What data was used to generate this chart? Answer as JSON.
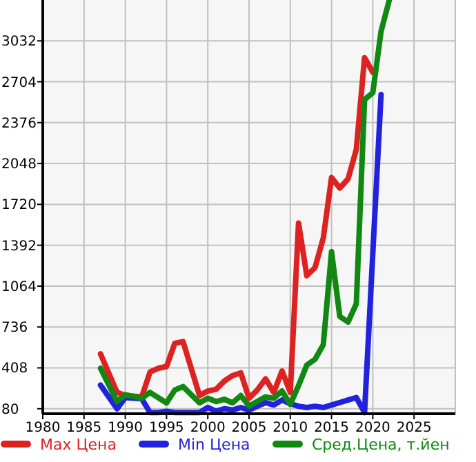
{
  "chart_data": {
    "type": "line",
    "xlim": [
      1980,
      2030
    ],
    "xticks": [
      1980,
      1985,
      1990,
      1995,
      2000,
      2005,
      2010,
      2015,
      2020,
      2025
    ],
    "ylim": [
      40,
      3360
    ],
    "yticks": [
      80,
      408,
      736,
      1064,
      1392,
      1720,
      2048,
      2376,
      2704,
      3032
    ],
    "grid": true,
    "legend": "bottom",
    "marker": "none",
    "line_style": "solid",
    "series": [
      {
        "name": "Max Цена",
        "color": "#dd2222",
        "x": [
          1987,
          1989,
          1990,
          1992,
          1993,
          1994,
          1995,
          1996,
          1997,
          1999,
          2000,
          2001,
          2002,
          2003,
          2004,
          2005,
          2006,
          2007,
          2008,
          2009,
          2010,
          2011,
          2012,
          2013,
          2014,
          2015,
          2016,
          2017,
          2018,
          2019,
          2020
        ],
        "values": [
          520,
          211,
          186,
          175,
          375,
          405,
          419,
          605,
          619,
          186,
          222,
          236,
          302,
          346,
          368,
          164,
          230,
          320,
          211,
          383,
          211,
          1570,
          1148,
          1213,
          1450,
          1935,
          1851,
          1924,
          2160,
          2897,
          2780
        ]
      },
      {
        "name": "Min Цена",
        "color": "#2222dd",
        "x": [
          1987,
          1989,
          1990,
          1992,
          1993,
          1994,
          1995,
          1996,
          1997,
          1998,
          1999,
          2000,
          2001,
          2002,
          2003,
          2004,
          2005,
          2006,
          2007,
          2008,
          2009,
          2010,
          2011,
          2012,
          2013,
          2014,
          2015,
          2016,
          2017,
          2018,
          2019,
          2021
        ],
        "values": [
          270,
          80,
          170,
          160,
          50,
          50,
          60,
          50,
          50,
          50,
          50,
          90,
          60,
          80,
          70,
          90,
          70,
          100,
          130,
          110,
          150,
          120,
          100,
          90,
          100,
          90,
          110,
          130,
          150,
          170,
          50,
          2600
        ]
      },
      {
        "name": "Сред.Цена, т.йен",
        "color": "#118811",
        "x": [
          1987,
          1989,
          1990,
          1992,
          1993,
          1995,
          1996,
          1997,
          1999,
          2000,
          2001,
          2002,
          2003,
          2004,
          2005,
          2006,
          2007,
          2008,
          2009,
          2010,
          2011,
          2012,
          2013,
          2014,
          2015,
          2016,
          2017,
          2018,
          2019,
          2020,
          2021,
          2022
        ],
        "values": [
          405,
          138,
          193,
          164,
          211,
          127,
          230,
          258,
          127,
          164,
          138,
          156,
          127,
          186,
          102,
          138,
          175,
          164,
          222,
          116,
          266,
          430,
          477,
          594,
          1340,
          820,
          776,
          922,
          2561,
          2616,
          3108,
          3360
        ]
      }
    ]
  }
}
